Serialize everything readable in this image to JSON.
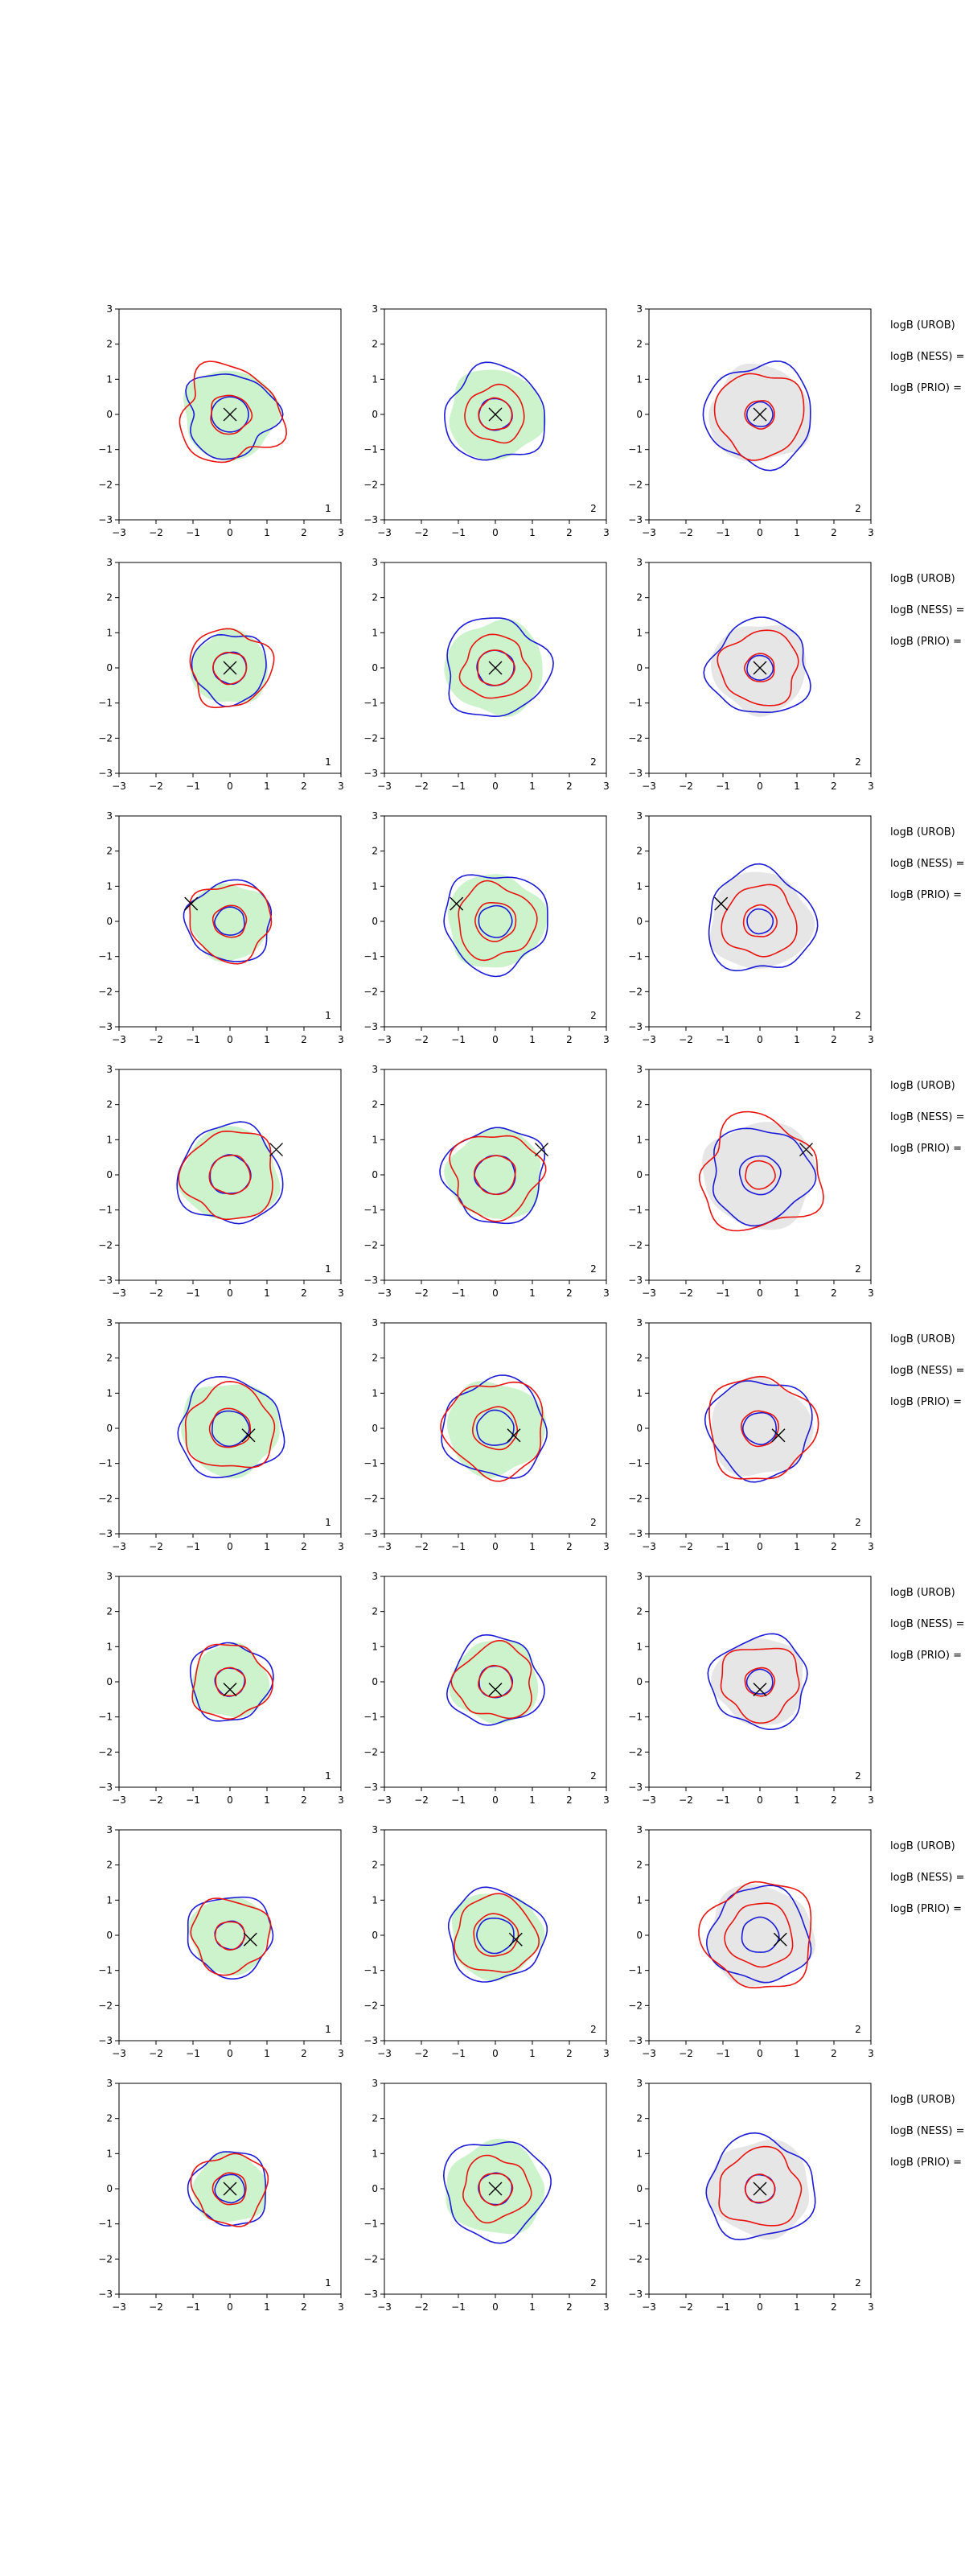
{
  "colors": {
    "a_fill": "#cdf3cd",
    "b_fill": "#e6e6e6",
    "line_red": "#e8140f",
    "line_blue": "#1b1bd6",
    "marker": "#000000"
  },
  "chart_data": {
    "type": "contour-grid",
    "rows": 8,
    "cols": 3,
    "xlim": [
      -3,
      3
    ],
    "ylim": [
      -3,
      3
    ],
    "xticks": [
      "−3",
      "−2",
      "−1",
      "0",
      "1",
      "2",
      "3"
    ],
    "yticks": [
      "3",
      "2",
      "1",
      "0",
      "−1",
      "−2",
      "−3"
    ],
    "column_labels": [
      "1",
      "2",
      "2"
    ],
    "row_side_labels": [
      "logB (UROB)",
      "logB (NESS) =",
      "logB (PRIO) ="
    ],
    "rows_data": [
      {
        "marker": [
          0,
          0
        ],
        "panels": [
          {
            "fill": "a",
            "red": [
              [
                0.55,
                0.1
              ],
              [
                1.35,
                0.25
              ]
            ],
            "blue": [
              [
                0.5,
                0
              ],
              [
                1.2,
                0.22
              ]
            ]
          },
          {
            "fill": "a",
            "red": [
              [
                0.45,
                0.06
              ],
              [
                0.8,
                0.1
              ]
            ],
            "blue": [
              [
                0.45,
                0.04
              ],
              [
                1.35,
                0.14
              ]
            ]
          },
          {
            "fill": "b",
            "red": [
              [
                0.4,
                0.05
              ],
              [
                1.2,
                0.12
              ]
            ],
            "blue": [
              [
                0.35,
                0.03
              ],
              [
                1.45,
                0.14
              ]
            ]
          }
        ]
      },
      {
        "marker": [
          0,
          0
        ],
        "panels": [
          {
            "fill": "a",
            "red": [
              [
                0.45,
                0.06
              ],
              [
                1.1,
                0.15
              ]
            ],
            "blue": [
              [
                0.45,
                0.05
              ],
              [
                1.0,
                0.12
              ]
            ]
          },
          {
            "fill": "a",
            "red": [
              [
                0.5,
                0.06
              ],
              [
                0.9,
                0.15
              ]
            ],
            "blue": [
              [
                0.5,
                0.04
              ],
              [
                1.4,
                0.15
              ]
            ]
          },
          {
            "fill": "b",
            "red": [
              [
                0.4,
                0.05
              ],
              [
                1.05,
                0.15
              ]
            ],
            "blue": [
              [
                0.35,
                0.03
              ],
              [
                1.35,
                0.15
              ]
            ]
          }
        ]
      },
      {
        "marker": [
          -1.05,
          0.5
        ],
        "panels": [
          {
            "fill": "a",
            "red": [
              [
                0.45,
                0.06
              ],
              [
                1.1,
                0.15
              ]
            ],
            "blue": [
              [
                0.4,
                0.05
              ],
              [
                1.15,
                0.12
              ]
            ]
          },
          {
            "fill": "a",
            "red": [
              [
                0.55,
                0.06
              ],
              [
                1.05,
                0.15
              ]
            ],
            "blue": [
              [
                0.45,
                0.04
              ],
              [
                1.4,
                0.15
              ]
            ]
          },
          {
            "fill": "b",
            "red": [
              [
                0.45,
                0.05
              ],
              [
                1.0,
                0.12
              ]
            ],
            "blue": [
              [
                0.35,
                0.03
              ],
              [
                1.45,
                0.15
              ]
            ]
          }
        ]
      },
      {
        "marker": [
          1.25,
          0.72
        ],
        "panels": [
          {
            "fill": "a",
            "red": [
              [
                0.55,
                0.06
              ],
              [
                1.25,
                0.15
              ]
            ],
            "blue": [
              [
                0.55,
                0.05
              ],
              [
                1.4,
                0.13
              ]
            ]
          },
          {
            "fill": "a",
            "red": [
              [
                0.55,
                0.06
              ],
              [
                1.2,
                0.18
              ]
            ],
            "blue": [
              [
                0.55,
                0.05
              ],
              [
                1.35,
                0.15
              ]
            ]
          },
          {
            "fill": "b",
            "red": [
              [
                0.4,
                0.05
              ],
              [
                1.6,
                0.22
              ]
            ],
            "blue": [
              [
                0.55,
                0.05
              ],
              [
                1.35,
                0.15
              ]
            ]
          }
        ]
      },
      {
        "marker": [
          0.5,
          -0.2
        ],
        "panels": [
          {
            "fill": "a",
            "red": [
              [
                0.55,
                0.06
              ],
              [
                1.2,
                0.15
              ]
            ],
            "blue": [
              [
                0.5,
                0.05
              ],
              [
                1.4,
                0.13
              ]
            ]
          },
          {
            "fill": "a",
            "red": [
              [
                0.6,
                0.06
              ],
              [
                1.35,
                0.15
              ]
            ],
            "blue": [
              [
                0.5,
                0.05
              ],
              [
                1.4,
                0.13
              ]
            ]
          },
          {
            "fill": "b",
            "red": [
              [
                0.5,
                0.05
              ],
              [
                1.45,
                0.14
              ]
            ],
            "blue": [
              [
                0.45,
                0.04
              ],
              [
                1.4,
                0.13
              ]
            ]
          }
        ]
      },
      {
        "marker": [
          0,
          -0.22
        ],
        "panels": [
          {
            "fill": "a",
            "red": [
              [
                0.4,
                0.06
              ],
              [
                1.05,
                0.15
              ]
            ],
            "blue": [
              [
                0.4,
                0.05
              ],
              [
                1.1,
                0.12
              ]
            ]
          },
          {
            "fill": "a",
            "red": [
              [
                0.45,
                0.06
              ],
              [
                1.05,
                0.18
              ]
            ],
            "blue": [
              [
                0.45,
                0.04
              ],
              [
                1.25,
                0.14
              ]
            ]
          },
          {
            "fill": "b",
            "red": [
              [
                0.4,
                0.05
              ],
              [
                1.05,
                0.17
              ]
            ],
            "blue": [
              [
                0.35,
                0.03
              ],
              [
                1.3,
                0.14
              ]
            ]
          }
        ]
      },
      {
        "marker": [
          0.55,
          -0.12
        ],
        "panels": [
          {
            "fill": "a",
            "red": [
              [
                0.4,
                0.06
              ],
              [
                1.05,
                0.15
              ]
            ],
            "blue": [
              [
                0.4,
                0.05
              ],
              [
                1.15,
                0.12
              ]
            ]
          },
          {
            "fill": "a",
            "red": [
              [
                0.6,
                0.05
              ],
              [
                1.1,
                0.12
              ]
            ],
            "blue": [
              [
                0.5,
                0.05
              ],
              [
                1.3,
                0.12
              ]
            ]
          },
          {
            "fill": "b",
            "red": [
              [
                0.9,
                0.1
              ],
              [
                1.5,
                0.15
              ]
            ],
            "blue": [
              [
                0.5,
                0.05
              ],
              [
                1.35,
                0.13
              ]
            ]
          }
        ]
      },
      {
        "marker": [
          0,
          0
        ],
        "panels": [
          {
            "fill": "a",
            "red": [
              [
                0.45,
                0.06
              ],
              [
                1.0,
                0.15
              ]
            ],
            "blue": [
              [
                0.4,
                0.05
              ],
              [
                1.05,
                0.12
              ]
            ]
          },
          {
            "fill": "a",
            "red": [
              [
                0.45,
                0.06
              ],
              [
                0.9,
                0.15
              ]
            ],
            "blue": [
              [
                0.45,
                0.04
              ],
              [
                1.4,
                0.14
              ]
            ]
          },
          {
            "fill": "b",
            "red": [
              [
                0.4,
                0.05
              ],
              [
                1.1,
                0.15
              ]
            ],
            "blue": [
              [
                0.4,
                0.03
              ],
              [
                1.45,
                0.14
              ]
            ]
          }
        ]
      }
    ]
  }
}
